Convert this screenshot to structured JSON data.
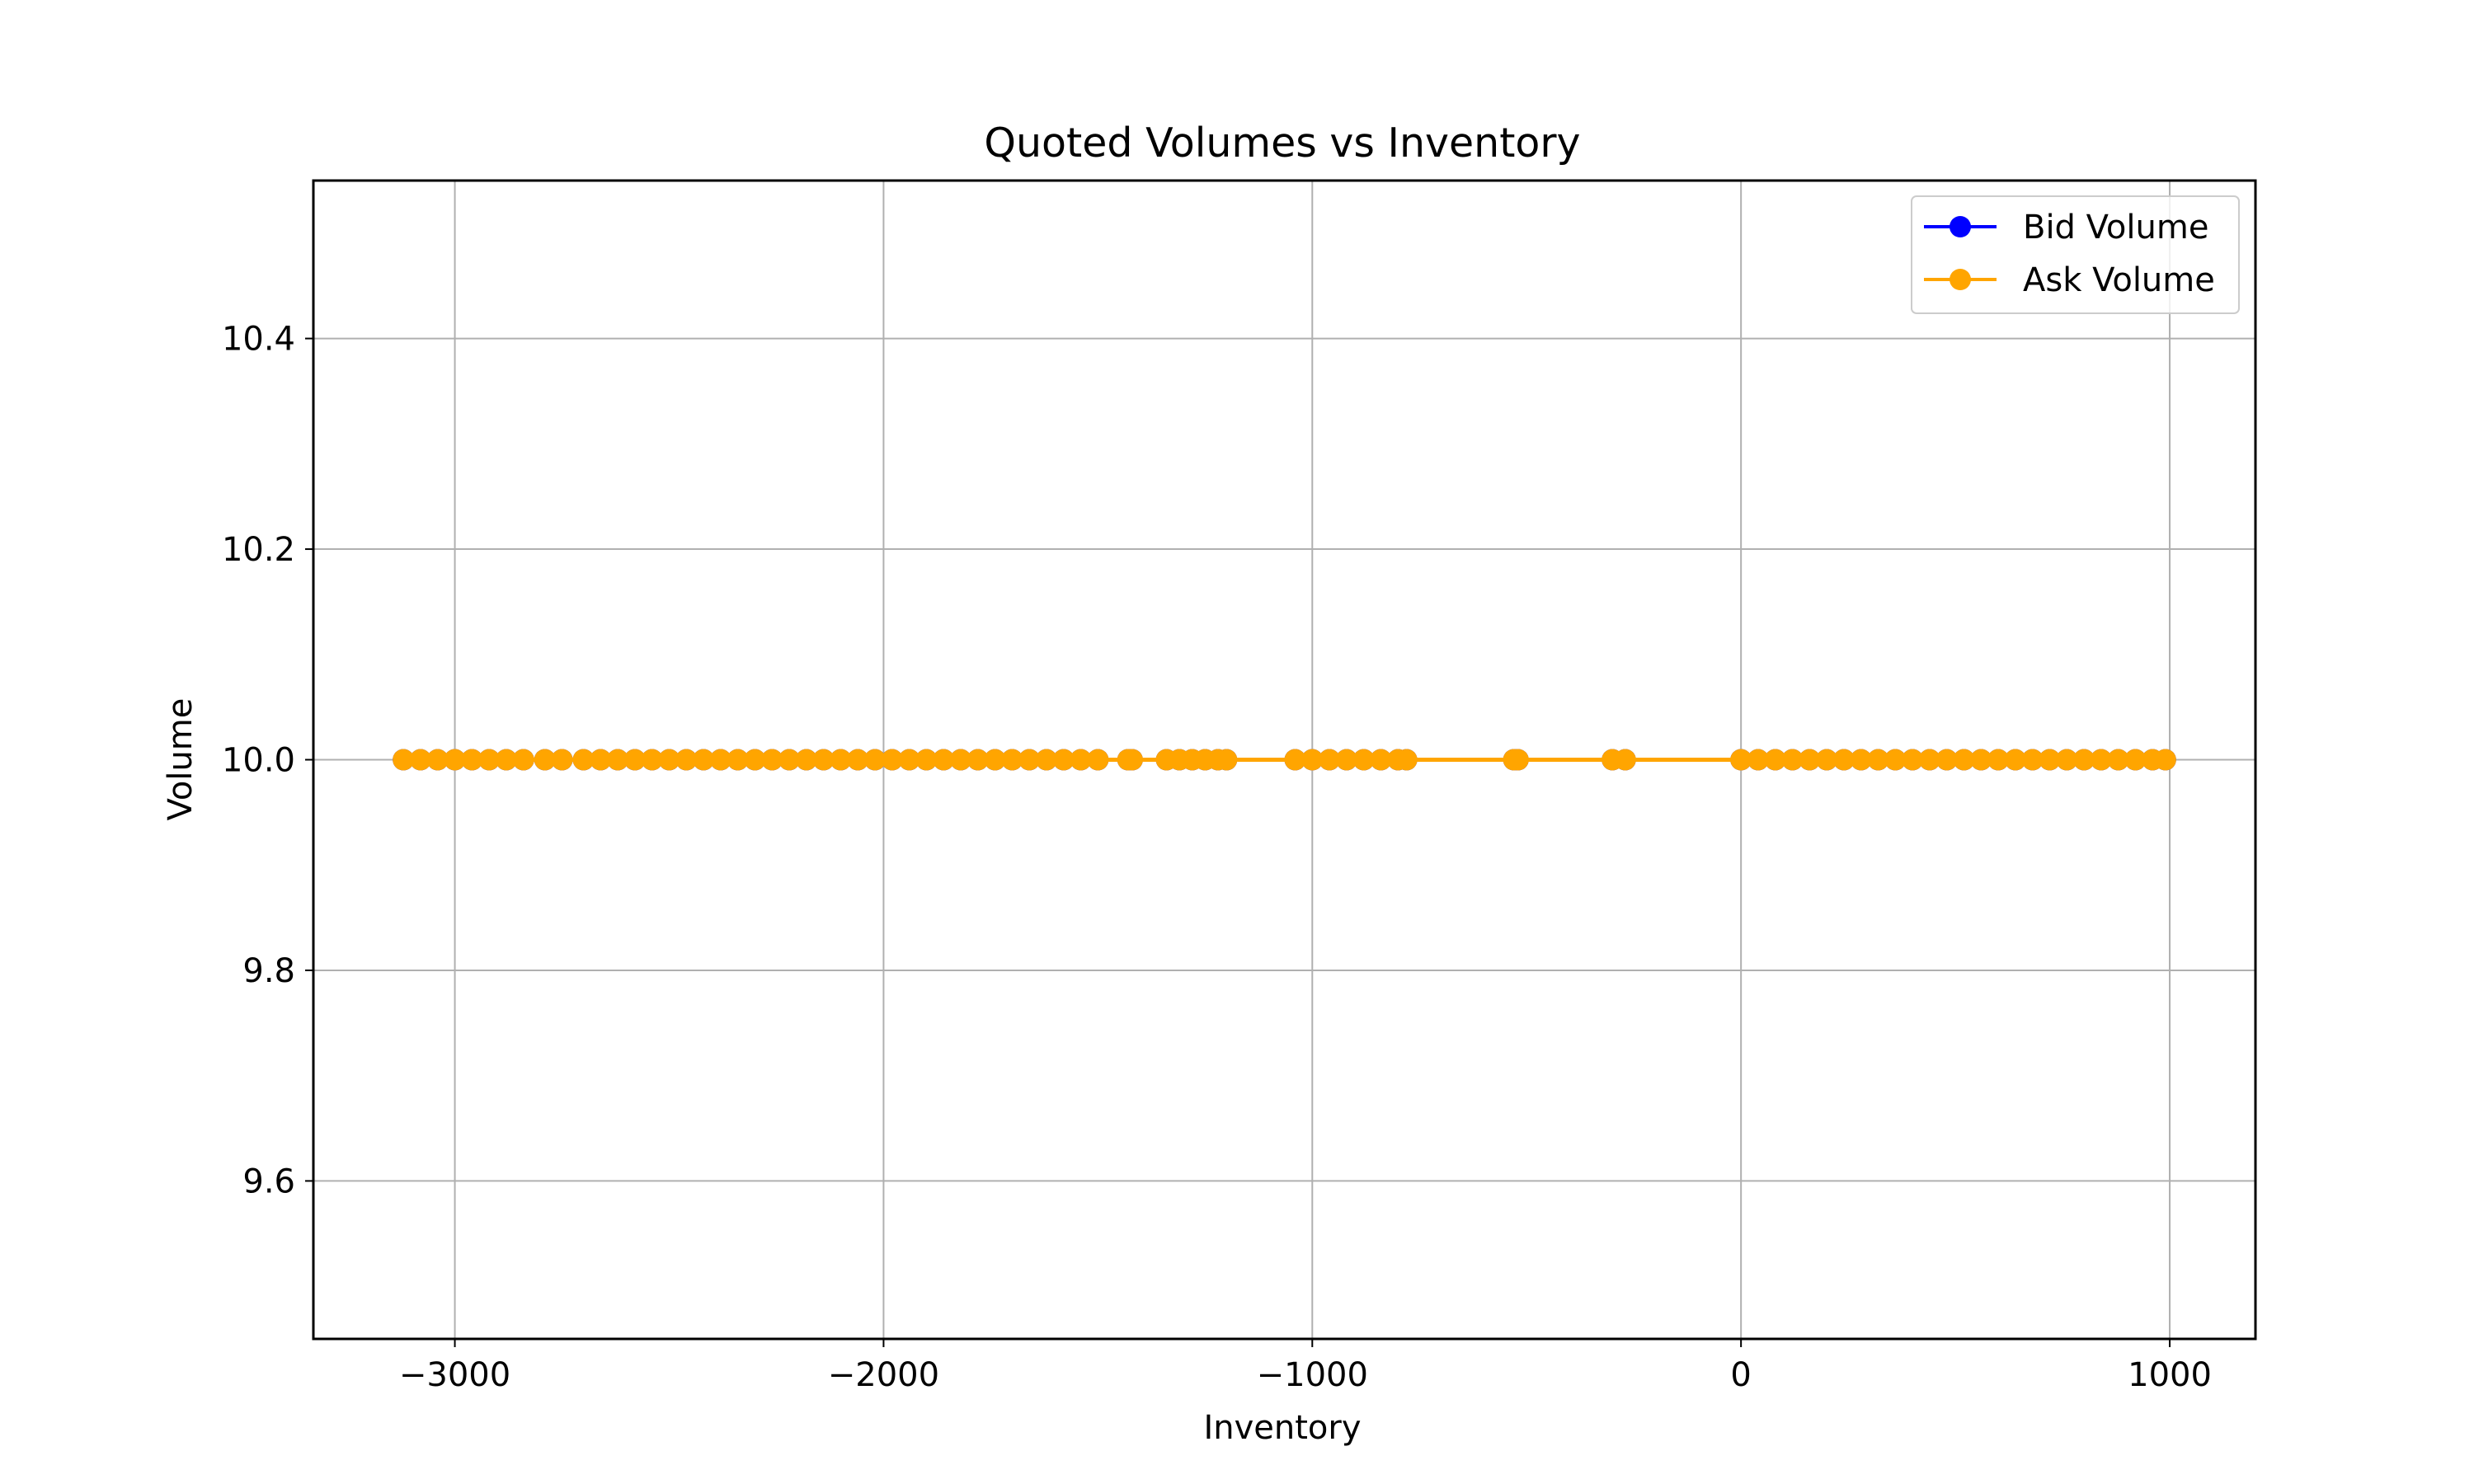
{
  "chart_data": {
    "type": "line",
    "title": "Quoted Volumes vs Inventory",
    "xlabel": "Inventory",
    "ylabel": "Volume",
    "xlim": [
      -3330,
      1200
    ],
    "ylim": [
      9.45,
      10.55
    ],
    "xticks": [
      -3000,
      -2000,
      -1000,
      0,
      1000
    ],
    "xtick_labels": [
      "−3000",
      "−2000",
      "−1000",
      "0",
      "1000"
    ],
    "yticks": [
      9.6,
      9.8,
      10.0,
      10.2,
      10.4
    ],
    "ytick_labels": [
      "9.6",
      "9.8",
      "10.0",
      "10.2",
      "10.4"
    ],
    "grid": true,
    "legend_position": "upper right",
    "series": [
      {
        "name": "Bid Volume",
        "color": "#0000ff",
        "marker": "circle",
        "points": [
          [
            -3120,
            10.0
          ],
          [
            -3080,
            10.0
          ],
          [
            -3040,
            10.0
          ],
          [
            -3000,
            10.0
          ],
          [
            -2960,
            10.0
          ],
          [
            -2920,
            10.0
          ],
          [
            -2880,
            10.0
          ],
          [
            -2840,
            10.0
          ],
          [
            -2790,
            10.0
          ],
          [
            -2750,
            10.0
          ],
          [
            -2700,
            10.0
          ],
          [
            -2660,
            10.0
          ],
          [
            -2620,
            10.0
          ],
          [
            -2580,
            10.0
          ],
          [
            -2540,
            10.0
          ],
          [
            -2500,
            10.0
          ],
          [
            -2460,
            10.0
          ],
          [
            -2420,
            10.0
          ],
          [
            -2380,
            10.0
          ],
          [
            -2340,
            10.0
          ],
          [
            -2300,
            10.0
          ],
          [
            -2260,
            10.0
          ],
          [
            -2220,
            10.0
          ],
          [
            -2180,
            10.0
          ],
          [
            -2140,
            10.0
          ],
          [
            -2100,
            10.0
          ],
          [
            -2060,
            10.0
          ],
          [
            -2020,
            10.0
          ],
          [
            -1980,
            10.0
          ],
          [
            -1940,
            10.0
          ],
          [
            -1900,
            10.0
          ],
          [
            -1860,
            10.0
          ],
          [
            -1820,
            10.0
          ],
          [
            -1780,
            10.0
          ],
          [
            -1740,
            10.0
          ],
          [
            -1700,
            10.0
          ],
          [
            -1660,
            10.0
          ],
          [
            -1620,
            10.0
          ],
          [
            -1580,
            10.0
          ],
          [
            -1540,
            10.0
          ],
          [
            -1500,
            10.0
          ],
          [
            -1430,
            10.0
          ],
          [
            -1420,
            10.0
          ],
          [
            -1340,
            10.0
          ],
          [
            -1310,
            10.0
          ],
          [
            -1280,
            10.0
          ],
          [
            -1250,
            10.0
          ],
          [
            -1220,
            10.0
          ],
          [
            -1200,
            10.0
          ],
          [
            -1040,
            10.0
          ],
          [
            -1000,
            10.0
          ],
          [
            -960,
            10.0
          ],
          [
            -920,
            10.0
          ],
          [
            -880,
            10.0
          ],
          [
            -840,
            10.0
          ],
          [
            -800,
            10.0
          ],
          [
            -780,
            10.0
          ],
          [
            -530,
            10.0
          ],
          [
            -520,
            10.0
          ],
          [
            -300,
            10.0
          ],
          [
            -270,
            10.0
          ],
          [
            0,
            10.0
          ],
          [
            40,
            10.0
          ],
          [
            80,
            10.0
          ],
          [
            120,
            10.0
          ],
          [
            160,
            10.0
          ],
          [
            200,
            10.0
          ],
          [
            240,
            10.0
          ],
          [
            280,
            10.0
          ],
          [
            320,
            10.0
          ],
          [
            360,
            10.0
          ],
          [
            400,
            10.0
          ],
          [
            440,
            10.0
          ],
          [
            480,
            10.0
          ],
          [
            520,
            10.0
          ],
          [
            560,
            10.0
          ],
          [
            600,
            10.0
          ],
          [
            640,
            10.0
          ],
          [
            680,
            10.0
          ],
          [
            720,
            10.0
          ],
          [
            760,
            10.0
          ],
          [
            800,
            10.0
          ],
          [
            840,
            10.0
          ],
          [
            880,
            10.0
          ],
          [
            920,
            10.0
          ],
          [
            960,
            10.0
          ],
          [
            990,
            10.0
          ]
        ]
      },
      {
        "name": "Ask Volume",
        "color": "#ffa500",
        "marker": "circle",
        "points": [
          [
            -3120,
            10.0
          ],
          [
            -3080,
            10.0
          ],
          [
            -3040,
            10.0
          ],
          [
            -3000,
            10.0
          ],
          [
            -2960,
            10.0
          ],
          [
            -2920,
            10.0
          ],
          [
            -2880,
            10.0
          ],
          [
            -2840,
            10.0
          ],
          [
            -2790,
            10.0
          ],
          [
            -2750,
            10.0
          ],
          [
            -2700,
            10.0
          ],
          [
            -2660,
            10.0
          ],
          [
            -2620,
            10.0
          ],
          [
            -2580,
            10.0
          ],
          [
            -2540,
            10.0
          ],
          [
            -2500,
            10.0
          ],
          [
            -2460,
            10.0
          ],
          [
            -2420,
            10.0
          ],
          [
            -2380,
            10.0
          ],
          [
            -2340,
            10.0
          ],
          [
            -2300,
            10.0
          ],
          [
            -2260,
            10.0
          ],
          [
            -2220,
            10.0
          ],
          [
            -2180,
            10.0
          ],
          [
            -2140,
            10.0
          ],
          [
            -2100,
            10.0
          ],
          [
            -2060,
            10.0
          ],
          [
            -2020,
            10.0
          ],
          [
            -1980,
            10.0
          ],
          [
            -1940,
            10.0
          ],
          [
            -1900,
            10.0
          ],
          [
            -1860,
            10.0
          ],
          [
            -1820,
            10.0
          ],
          [
            -1780,
            10.0
          ],
          [
            -1740,
            10.0
          ],
          [
            -1700,
            10.0
          ],
          [
            -1660,
            10.0
          ],
          [
            -1620,
            10.0
          ],
          [
            -1580,
            10.0
          ],
          [
            -1540,
            10.0
          ],
          [
            -1500,
            10.0
          ],
          [
            -1430,
            10.0
          ],
          [
            -1420,
            10.0
          ],
          [
            -1340,
            10.0
          ],
          [
            -1310,
            10.0
          ],
          [
            -1280,
            10.0
          ],
          [
            -1250,
            10.0
          ],
          [
            -1220,
            10.0
          ],
          [
            -1200,
            10.0
          ],
          [
            -1040,
            10.0
          ],
          [
            -1000,
            10.0
          ],
          [
            -960,
            10.0
          ],
          [
            -920,
            10.0
          ],
          [
            -880,
            10.0
          ],
          [
            -840,
            10.0
          ],
          [
            -800,
            10.0
          ],
          [
            -780,
            10.0
          ],
          [
            -530,
            10.0
          ],
          [
            -520,
            10.0
          ],
          [
            -300,
            10.0
          ],
          [
            -270,
            10.0
          ],
          [
            0,
            10.0
          ],
          [
            40,
            10.0
          ],
          [
            80,
            10.0
          ],
          [
            120,
            10.0
          ],
          [
            160,
            10.0
          ],
          [
            200,
            10.0
          ],
          [
            240,
            10.0
          ],
          [
            280,
            10.0
          ],
          [
            320,
            10.0
          ],
          [
            360,
            10.0
          ],
          [
            400,
            10.0
          ],
          [
            440,
            10.0
          ],
          [
            480,
            10.0
          ],
          [
            520,
            10.0
          ],
          [
            560,
            10.0
          ],
          [
            600,
            10.0
          ],
          [
            640,
            10.0
          ],
          [
            680,
            10.0
          ],
          [
            720,
            10.0
          ],
          [
            760,
            10.0
          ],
          [
            800,
            10.0
          ],
          [
            840,
            10.0
          ],
          [
            880,
            10.0
          ],
          [
            920,
            10.0
          ],
          [
            960,
            10.0
          ],
          [
            990,
            10.0
          ]
        ]
      }
    ]
  }
}
